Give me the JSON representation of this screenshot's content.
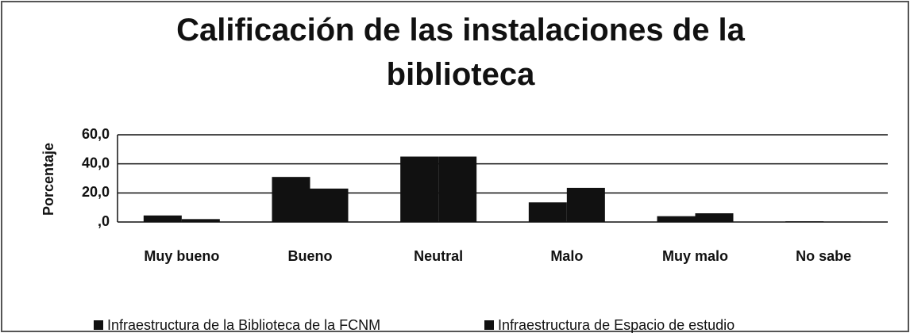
{
  "chart_data": {
    "type": "bar",
    "title": "Calificación de las instalaciones de la biblioteca",
    "y_label": "Porcentaje",
    "categories": [
      "Muy bueno",
      "Bueno",
      "Neutral",
      "Malo",
      "Muy malo",
      "No sabe"
    ],
    "series": [
      {
        "name": "Infraestructura de la Biblioteca de la FCNM",
        "color": "#111111",
        "values": [
          4.5,
          31,
          45,
          13.5,
          4,
          0.5
        ]
      },
      {
        "name": "Infraestructura de Espacio de estudio",
        "color": "#111111",
        "values": [
          2,
          23,
          45,
          23.5,
          6,
          0.3
        ]
      }
    ],
    "ylim": [
      0,
      60
    ],
    "yticks": [
      {
        "value": 0,
        "label": ",0"
      },
      {
        "value": 20,
        "label": "20,0"
      },
      {
        "value": 40,
        "label": "40,0"
      },
      {
        "value": 60,
        "label": "60,0"
      }
    ],
    "grid": true,
    "legend": "bottom"
  }
}
